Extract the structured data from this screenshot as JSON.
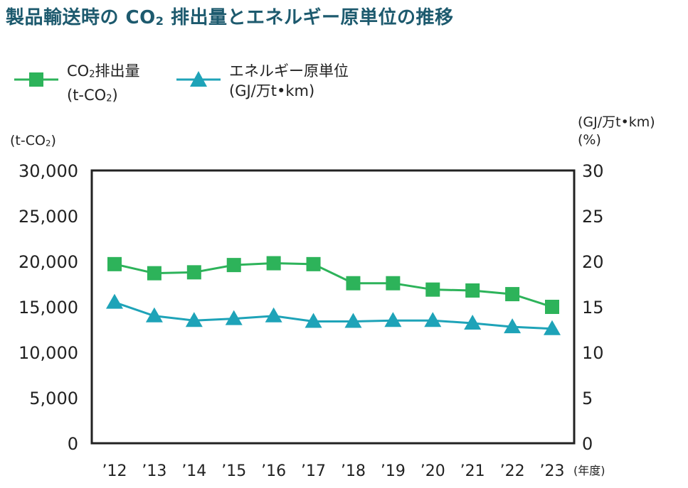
{
  "title": {
    "prefix": "製品輸送時の CO",
    "sub": "2",
    "suffix": " 排出量とエネルギー原単位の推移"
  },
  "legend": [
    {
      "line1_prefix": "CO",
      "line1_sub": "2",
      "line1_suffix": "排出量",
      "line2_prefix": "(t-CO",
      "line2_sub": "2",
      "line2_suffix": ")",
      "color": "#2db35a",
      "marker": "square"
    },
    {
      "line1_prefix": "エネルギー原単位",
      "line1_sub": "",
      "line1_suffix": "",
      "line2_prefix": "(GJ/万t•km)",
      "line2_sub": "",
      "line2_suffix": "",
      "color": "#1ea3b8",
      "marker": "triangle"
    }
  ],
  "axis_units": {
    "left_prefix": "(t-CO",
    "left_sub": "2",
    "left_suffix": ")",
    "right_line1": "(GJ/万t•km)",
    "right_line2": "(%)",
    "x_unit": "(年度)"
  },
  "chart_data": {
    "type": "line",
    "categories": [
      "’12",
      "’13",
      "’14",
      "’15",
      "’16",
      "’17",
      "’18",
      "’19",
      "’20",
      "’21",
      "’22",
      "’23"
    ],
    "left_axis": {
      "min": 0,
      "max": 30000,
      "ticks": [
        0,
        5000,
        10000,
        15000,
        20000,
        25000,
        30000
      ],
      "tick_labels": [
        "0",
        "5,000",
        "10,000",
        "15,000",
        "20,000",
        "25,000",
        "30,000"
      ]
    },
    "right_axis": {
      "min": 0,
      "max": 30,
      "ticks": [
        0,
        5,
        10,
        15,
        20,
        25,
        30
      ],
      "tick_labels": [
        "0",
        "5",
        "10",
        "15",
        "20",
        "25",
        "30"
      ]
    },
    "series": [
      {
        "name": "CO₂排出量",
        "axis": "left",
        "color": "#2db35a",
        "marker": "square",
        "values": [
          19700,
          18700,
          18800,
          19600,
          19800,
          19700,
          17600,
          17600,
          16900,
          16800,
          16400,
          15000
        ]
      },
      {
        "name": "エネルギー原単位",
        "axis": "right",
        "color": "#1ea3b8",
        "marker": "triangle",
        "values": [
          15.5,
          14.0,
          13.5,
          13.7,
          14.0,
          13.4,
          13.4,
          13.5,
          13.5,
          13.2,
          12.8,
          12.6
        ]
      }
    ],
    "grid": false,
    "legend_position": "top-left"
  }
}
